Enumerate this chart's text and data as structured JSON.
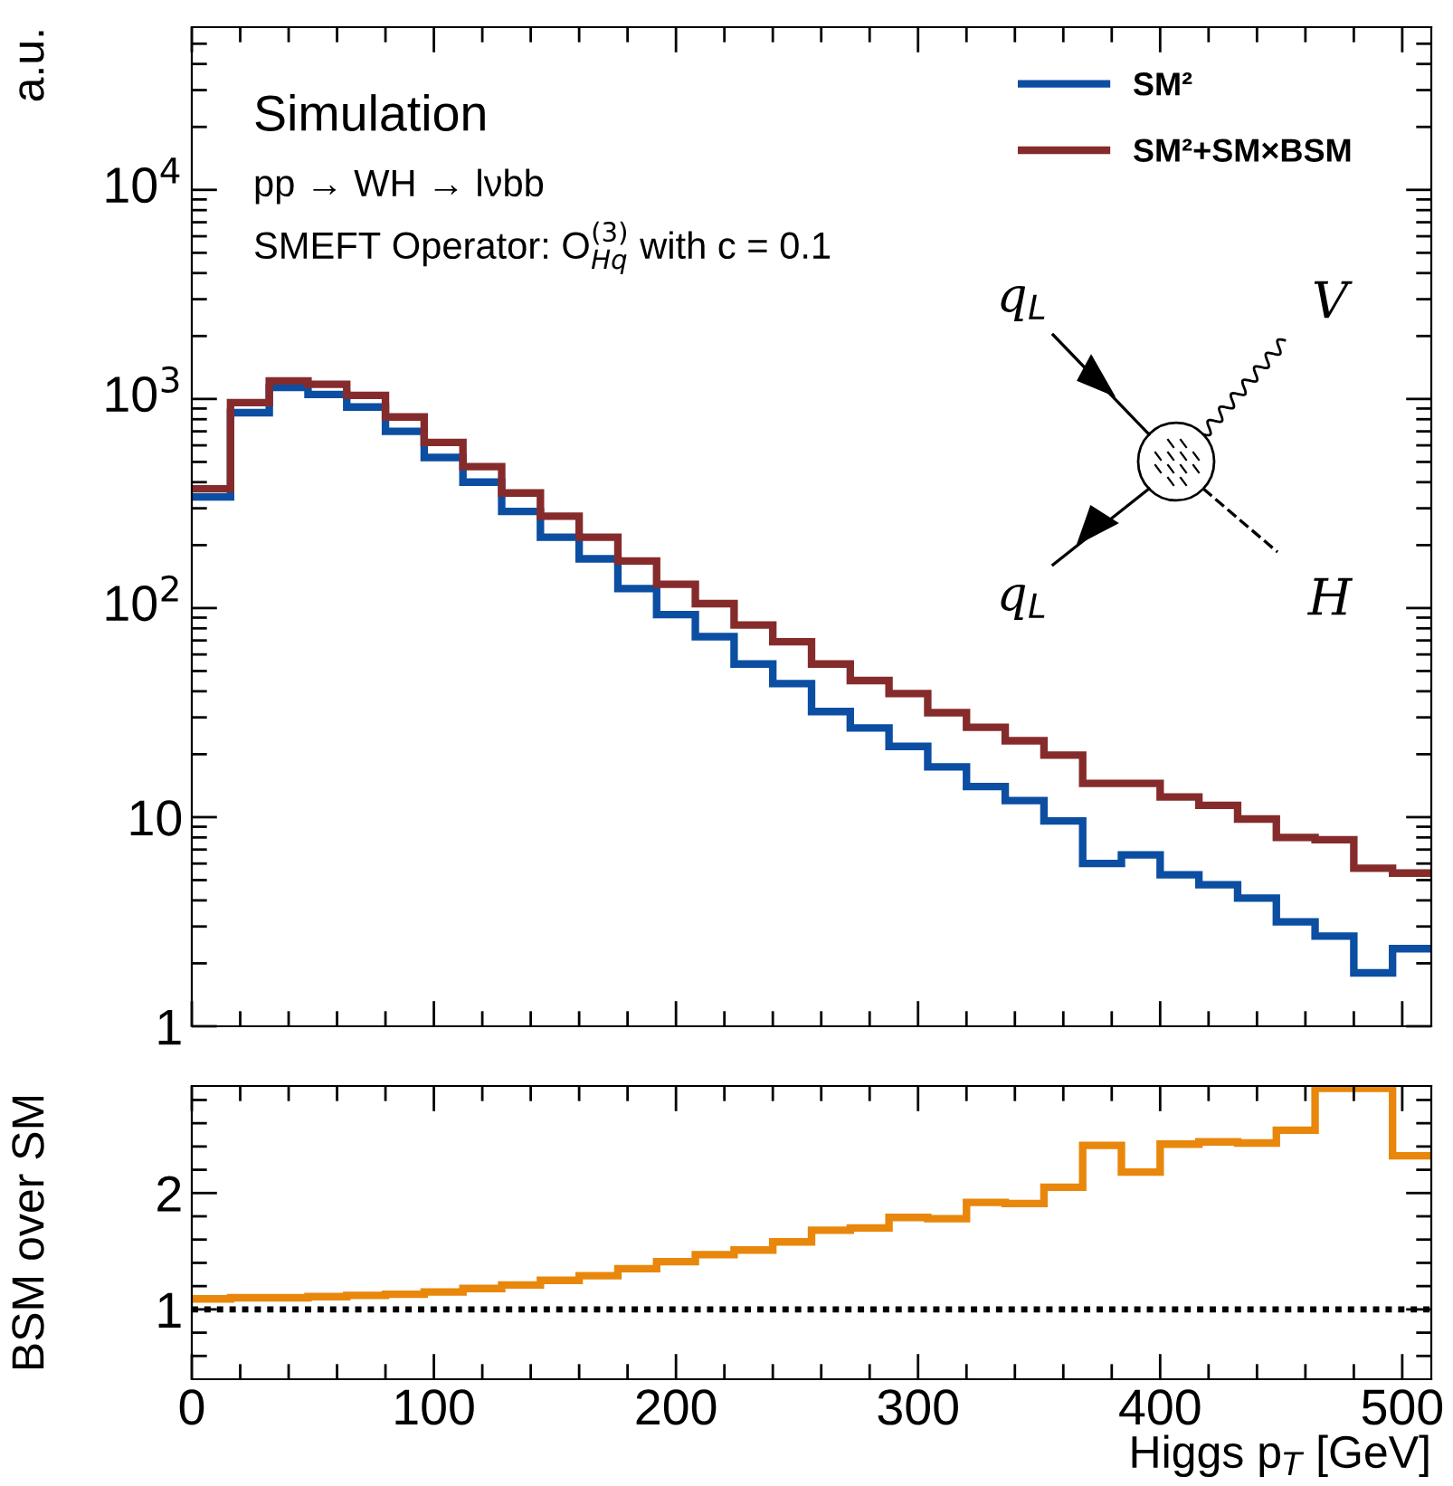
{
  "chart_data": [
    {
      "type": "histogram",
      "ylabel": "a.u.",
      "legend": "top right",
      "log": true,
      "tick_labels": "y",
      "grid": false,
      "annotations": [
        "Simulation",
        "pp → WH → lνbb",
        "SMEFT Operator: O$^{(3)}$$_{Hq}$ with c = 0.1",
        "q$_{L}$",
        "V",
        "q$_{L}$",
        "H"
      ],
      "bins": [
        0,
        16,
        32,
        48,
        64,
        80,
        96,
        112,
        128,
        144,
        160,
        176,
        192,
        208,
        224,
        240,
        256,
        272,
        288,
        304,
        320,
        336,
        352,
        368,
        384,
        400,
        416,
        432,
        448,
        464,
        480,
        496,
        512
      ],
      "series": [
        {
          "name": "SM²",
          "color": "#0b4ea2",
          "values": [
            340,
            860,
            1135,
            1050,
            915,
            700,
            525,
            400,
            290,
            218,
            172,
            124,
            93,
            73,
            54,
            43.5,
            32,
            26.7,
            21.8,
            17.4,
            14.0,
            12.0,
            9.6,
            6.0,
            6.6,
            5.3,
            4.75,
            4.1,
            3.16,
            2.7,
            1.8,
            2.35
          ]
        },
        {
          "name": "SM²+SM×BSM",
          "color": "#862b2b",
          "values": [
            372,
            960,
            1220,
            1175,
            1040,
            820,
            620,
            475,
            355,
            275,
            218,
            168,
            130,
            105,
            83,
            69,
            54,
            45,
            39,
            31.6,
            26.9,
            23.2,
            19.8,
            14.5,
            14.5,
            12.5,
            11.4,
            9.8,
            8.0,
            7.8,
            5.7,
            5.4
          ]
        }
      ],
      "xlim": [
        0,
        512
      ],
      "xticks": [
        0,
        {
          "value": 20,
          "label": null
        },
        {
          "value": 40,
          "label": null
        },
        {
          "value": 60,
          "label": null
        },
        {
          "value": 80,
          "label": null
        },
        100,
        {
          "value": 120,
          "label": null
        },
        {
          "value": 140,
          "label": null
        },
        {
          "value": 160,
          "label": null
        },
        {
          "value": 180,
          "label": null
        },
        200,
        {
          "value": 220,
          "label": null
        },
        {
          "value": 240,
          "label": null
        },
        {
          "value": 260,
          "label": null
        },
        {
          "value": 280,
          "label": null
        },
        300,
        {
          "value": 320,
          "label": null
        },
        {
          "value": 340,
          "label": null
        },
        {
          "value": 360,
          "label": null
        },
        {
          "value": 380,
          "label": null
        },
        400,
        {
          "value": 420,
          "label": null
        },
        {
          "value": 440,
          "label": null
        },
        {
          "value": 460,
          "label": null
        },
        {
          "value": 480,
          "label": null
        },
        500
      ],
      "ylim": [
        1,
        60000
      ],
      "yticks": [
        1,
        {
          "value": 2,
          "label": null
        },
        {
          "value": 3,
          "label": null
        },
        {
          "value": 4,
          "label": null
        },
        {
          "value": 5,
          "label": null
        },
        {
          "value": 6,
          "label": null
        },
        {
          "value": 7,
          "label": null
        },
        {
          "value": 8,
          "label": null
        },
        {
          "value": 9,
          "label": null
        },
        10,
        {
          "value": 20,
          "label": null
        },
        {
          "value": 30,
          "label": null
        },
        {
          "value": 40,
          "label": null
        },
        {
          "value": 50,
          "label": null
        },
        {
          "value": 60,
          "label": null
        },
        {
          "value": 70,
          "label": null
        },
        {
          "value": 80,
          "label": null
        },
        {
          "value": 90,
          "label": null
        },
        {
          "value": 100,
          "label": "10$^{2}$"
        },
        {
          "value": 200,
          "label": null
        },
        {
          "value": 300,
          "label": null
        },
        {
          "value": 400,
          "label": null
        },
        {
          "value": 500,
          "label": null
        },
        {
          "value": 600,
          "label": null
        },
        {
          "value": 700,
          "label": null
        },
        {
          "value": 800,
          "label": null
        },
        {
          "value": 900,
          "label": null
        },
        {
          "value": 1000,
          "label": "10$^{3}$"
        },
        {
          "value": 2000,
          "label": null
        },
        {
          "value": 3000,
          "label": null
        },
        {
          "value": 4000,
          "label": null
        },
        {
          "value": 5000,
          "label": null
        },
        {
          "value": 6000,
          "label": null
        },
        {
          "value": 7000,
          "label": null
        },
        {
          "value": 8000,
          "label": null
        },
        {
          "value": 9000,
          "label": null
        },
        {
          "value": 10000,
          "label": "10$^{4}$"
        },
        {
          "value": 20000,
          "label": null
        },
        {
          "value": 30000,
          "label": null
        },
        {
          "value": 40000,
          "label": null
        },
        {
          "value": 50000,
          "label": null
        }
      ]
    },
    {
      "type": "histogram",
      "xlabel": "Higgs p$_{T}$ [GeV]",
      "ylabel": "BSM over SM",
      "grid": false,
      "bins": [
        0,
        16,
        32,
        48,
        64,
        80,
        96,
        112,
        128,
        144,
        160,
        176,
        192,
        208,
        224,
        240,
        256,
        272,
        288,
        304,
        320,
        336,
        352,
        368,
        384,
        400,
        416,
        432,
        448,
        464,
        480,
        496,
        512
      ],
      "series": [
        {
          "color": "#e8870b",
          "values": [
            1.09,
            1.1,
            1.1,
            1.11,
            1.12,
            1.13,
            1.15,
            1.18,
            1.21,
            1.25,
            1.29,
            1.35,
            1.41,
            1.47,
            1.51,
            1.58,
            1.68,
            1.7,
            1.79,
            1.78,
            1.92,
            1.91,
            2.05,
            2.41,
            2.18,
            2.42,
            2.44,
            2.43,
            2.54,
            2.9,
            2.9,
            2.32
          ]
        }
      ],
      "ref_lines": [
        {
          "axis": "y",
          "value": 1,
          "color": "#000000",
          "line_style": "dotted"
        }
      ],
      "xlim": [
        0,
        512
      ],
      "xticks": [
        0,
        {
          "value": 20,
          "label": null
        },
        {
          "value": 40,
          "label": null
        },
        {
          "value": 60,
          "label": null
        },
        {
          "value": 80,
          "label": null
        },
        100,
        {
          "value": 120,
          "label": null
        },
        {
          "value": 140,
          "label": null
        },
        {
          "value": 160,
          "label": null
        },
        {
          "value": 180,
          "label": null
        },
        200,
        {
          "value": 220,
          "label": null
        },
        {
          "value": 240,
          "label": null
        },
        {
          "value": 260,
          "label": null
        },
        {
          "value": 280,
          "label": null
        },
        300,
        {
          "value": 320,
          "label": null
        },
        {
          "value": 340,
          "label": null
        },
        {
          "value": 360,
          "label": null
        },
        {
          "value": 380,
          "label": null
        },
        400,
        {
          "value": 420,
          "label": null
        },
        {
          "value": 440,
          "label": null
        },
        {
          "value": 460,
          "label": null
        },
        {
          "value": 480,
          "label": null
        },
        500
      ],
      "ylim": [
        0.4,
        2.92
      ],
      "yticks": [
        {
          "value": 0.6,
          "label": null
        },
        {
          "value": 0.8,
          "label": null
        },
        1,
        {
          "value": 1.2,
          "label": null
        },
        {
          "value": 1.4,
          "label": null
        },
        {
          "value": 1.6,
          "label": null
        },
        {
          "value": 1.8,
          "label": null
        },
        2,
        {
          "value": 2.2,
          "label": null
        },
        {
          "value": 2.4,
          "label": null
        },
        {
          "value": 2.6,
          "label": null
        },
        {
          "value": 2.8,
          "label": null
        }
      ]
    }
  ]
}
